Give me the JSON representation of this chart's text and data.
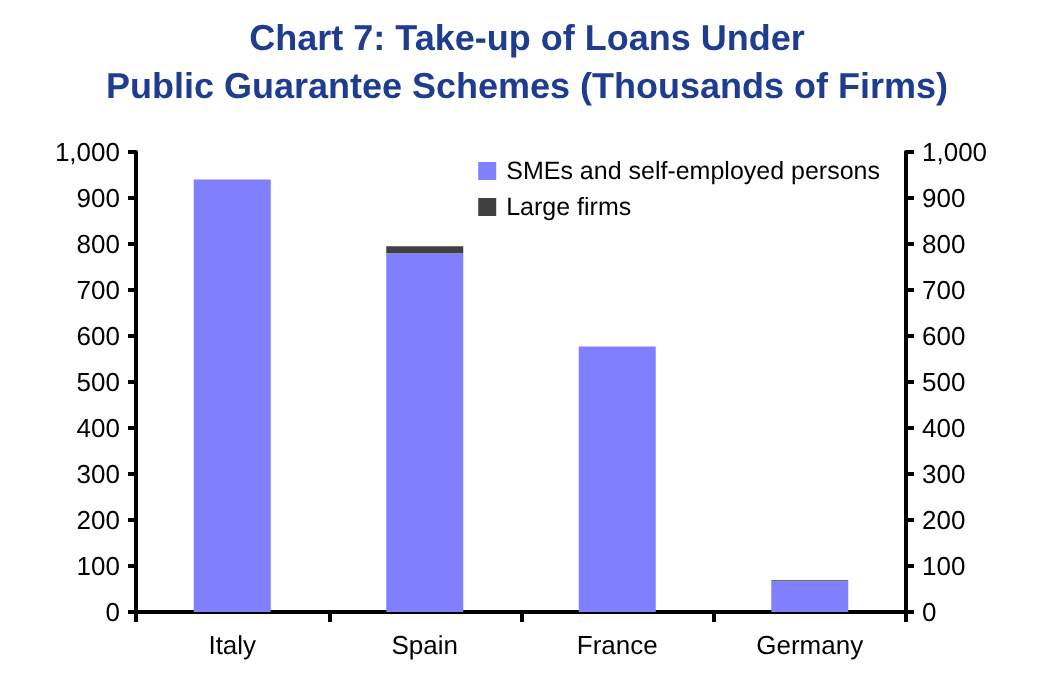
{
  "chart_data": {
    "type": "bar",
    "title": "Chart 7: Take-up of Loans Under\nPublic Guarantee Schemes (Thousands of Firms)",
    "categories": [
      "Italy",
      "Spain",
      "France",
      "Germany"
    ],
    "stacked": true,
    "series": [
      {
        "name": "SMEs and self-employed persons",
        "color": "#8080ff",
        "values": [
          940,
          780,
          577,
          67
        ]
      },
      {
        "name": "Large firms",
        "color": "#404040",
        "values": [
          null,
          15,
          null,
          2
        ]
      }
    ],
    "ylim": [
      0,
      1000
    ],
    "yticks": [
      0,
      100,
      200,
      300,
      400,
      500,
      600,
      700,
      800,
      900,
      {
        "value": 1000,
        "label": "1,000"
      }
    ],
    "y2lim": [
      0,
      1000
    ],
    "y2ticks": [
      0,
      100,
      200,
      300,
      400,
      500,
      600,
      700,
      800,
      900,
      {
        "value": 1000,
        "label": "1,000"
      }
    ],
    "grid": false,
    "legend": "top right"
  }
}
